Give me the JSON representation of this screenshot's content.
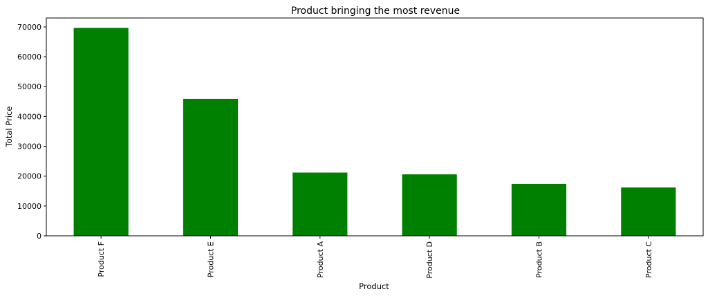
{
  "chart_data": {
    "type": "bar",
    "title": "Product bringing the most revenue",
    "xlabel": "Product",
    "ylabel": "Total Price",
    "categories": [
      "Product F",
      "Product E",
      "Product A",
      "Product D",
      "Product B",
      "Product C"
    ],
    "values": [
      69700,
      45900,
      21200,
      20600,
      17400,
      16200
    ],
    "ylim": [
      0,
      73000
    ],
    "yticks": [
      0,
      10000,
      20000,
      30000,
      40000,
      50000,
      60000,
      70000
    ],
    "grid": false,
    "bar_color": "#008000",
    "x_tick_rotation": "vertical"
  }
}
